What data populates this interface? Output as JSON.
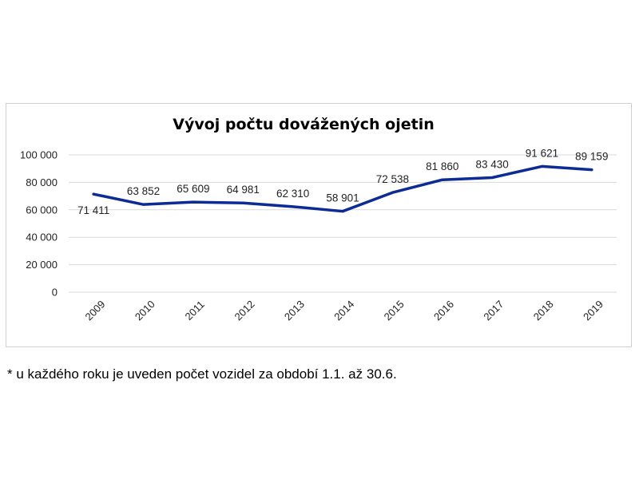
{
  "chart_data": {
    "type": "line",
    "title": "Vývoj počtu dovážených ojetin",
    "xlabel": "",
    "ylabel": "",
    "categories": [
      "2009",
      "2010",
      "2011",
      "2012",
      "2013",
      "2014",
      "2015",
      "2016",
      "2017",
      "2018",
      "2019"
    ],
    "series": [
      {
        "values": [
          71411,
          63852,
          65609,
          64981,
          62310,
          58901,
          72538,
          81860,
          83430,
          91621,
          89159
        ],
        "color": "#0c2b94"
      }
    ],
    "data_labels": [
      "71 411",
      "63 852",
      "65 609",
      "64 981",
      "62 310",
      "58 901",
      "72 538",
      "81 860",
      "83 430",
      "91 621",
      "89 159"
    ],
    "y_ticks": [
      0,
      20000,
      40000,
      60000,
      80000,
      100000
    ],
    "y_tick_labels": [
      "0",
      "20 000",
      "40 000",
      "60 000",
      "80 000",
      "100 000"
    ],
    "ylim": [
      0,
      100000
    ],
    "grid": true,
    "legend": "none",
    "gridline_color": "#d9d9d9",
    "label_color": "#222222"
  },
  "footnote": "* u každého roku je uveden počet vozidel za období 1.1. až 30.6."
}
